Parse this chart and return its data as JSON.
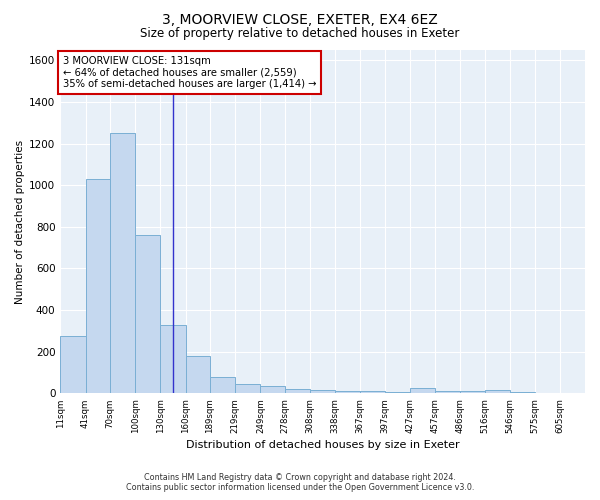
{
  "title": "3, MOORVIEW CLOSE, EXETER, EX4 6EZ",
  "subtitle": "Size of property relative to detached houses in Exeter",
  "xlabel": "Distribution of detached houses by size in Exeter",
  "ylabel": "Number of detached properties",
  "footer_line1": "Contains HM Land Registry data © Crown copyright and database right 2024.",
  "footer_line2": "Contains public sector information licensed under the Open Government Licence v3.0.",
  "annotation_line1": "3 MOORVIEW CLOSE: 131sqm",
  "annotation_line2": "← 64% of detached houses are smaller (2,559)",
  "annotation_line3": "35% of semi-detached houses are larger (1,414) →",
  "property_size": 131,
  "bar_left_edges": [
    11,
    41,
    70,
    100,
    130,
    160,
    189,
    219,
    249,
    278,
    308,
    338,
    367,
    397,
    427,
    457,
    486,
    516,
    546,
    575
  ],
  "bar_widths": [
    30,
    29,
    30,
    30,
    30,
    29,
    30,
    30,
    29,
    30,
    30,
    29,
    30,
    30,
    30,
    29,
    30,
    30,
    29,
    30
  ],
  "bar_heights": [
    275,
    1030,
    1250,
    760,
    330,
    180,
    80,
    45,
    35,
    20,
    18,
    12,
    10,
    8,
    25,
    12,
    10,
    15,
    8,
    0
  ],
  "tick_labels": [
    "11sqm",
    "41sqm",
    "70sqm",
    "100sqm",
    "130sqm",
    "160sqm",
    "189sqm",
    "219sqm",
    "249sqm",
    "278sqm",
    "308sqm",
    "338sqm",
    "367sqm",
    "397sqm",
    "427sqm",
    "457sqm",
    "486sqm",
    "516sqm",
    "546sqm",
    "575sqm",
    "605sqm"
  ],
  "tick_positions": [
    11,
    41,
    70,
    100,
    130,
    160,
    189,
    219,
    249,
    278,
    308,
    338,
    367,
    397,
    427,
    457,
    486,
    516,
    546,
    575,
    605
  ],
  "bar_color": "#c5d8ef",
  "bar_edge_color": "#7aafd4",
  "vline_color": "#3333cc",
  "annotation_box_color": "#cc0000",
  "background_color": "#ffffff",
  "plot_background_color": "#e8f0f8",
  "grid_color": "#ffffff",
  "ylim": [
    0,
    1650
  ],
  "xlim": [
    11,
    635
  ],
  "vline_x": 145
}
